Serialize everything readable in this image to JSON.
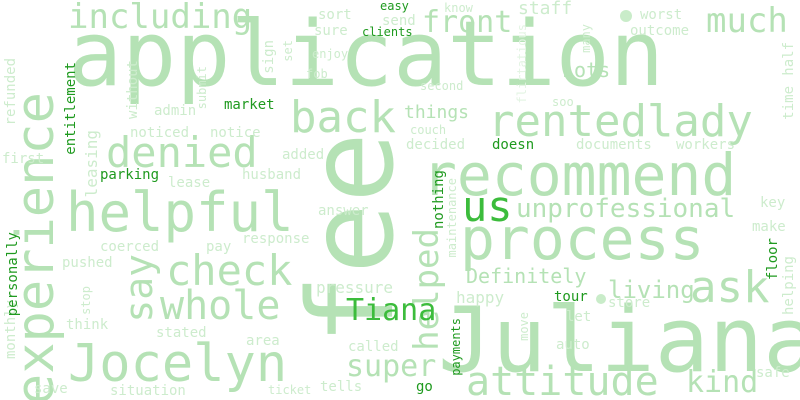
{
  "words": [
    "application",
    "fee",
    "Juliana",
    "recommend",
    "experience",
    "process",
    "helpful",
    "Jocelyn",
    "rentedlady",
    "back",
    "denied",
    "check",
    "whole",
    "attitude",
    "say",
    "ask",
    "unprofessional",
    "us",
    "much",
    "including",
    "helped",
    "super",
    "front",
    "kind",
    "Tiana",
    "living",
    "Definitely",
    "Lots",
    "things",
    "documents",
    "workers",
    "refunded",
    "entitlement",
    "without",
    "admin",
    "market",
    "noticed",
    "notice",
    "leasing",
    "parking",
    "lease",
    "husband",
    "added",
    "decided",
    "doesn",
    "couch",
    "first",
    "monthly",
    "personally",
    "pushed",
    "coerced",
    "pay",
    "response",
    "answer",
    "nothing",
    "maintenance",
    "pressure",
    "happy",
    "tour",
    "store",
    "let",
    "move",
    "auto",
    "payments",
    "called",
    "area",
    "stated",
    "think",
    "stop",
    "save",
    "situation",
    "ticket",
    "tells",
    "go",
    "safe",
    "helping",
    "floor",
    "make",
    "key",
    "time",
    "half",
    "soo",
    "outcome",
    "worst",
    "staff",
    "know",
    "easy",
    "send",
    "clients",
    "sort",
    "sure",
    "enjoy",
    "fob",
    "set",
    "sign",
    "submit",
    "second",
    "flirtatious",
    "many"
  ]
}
